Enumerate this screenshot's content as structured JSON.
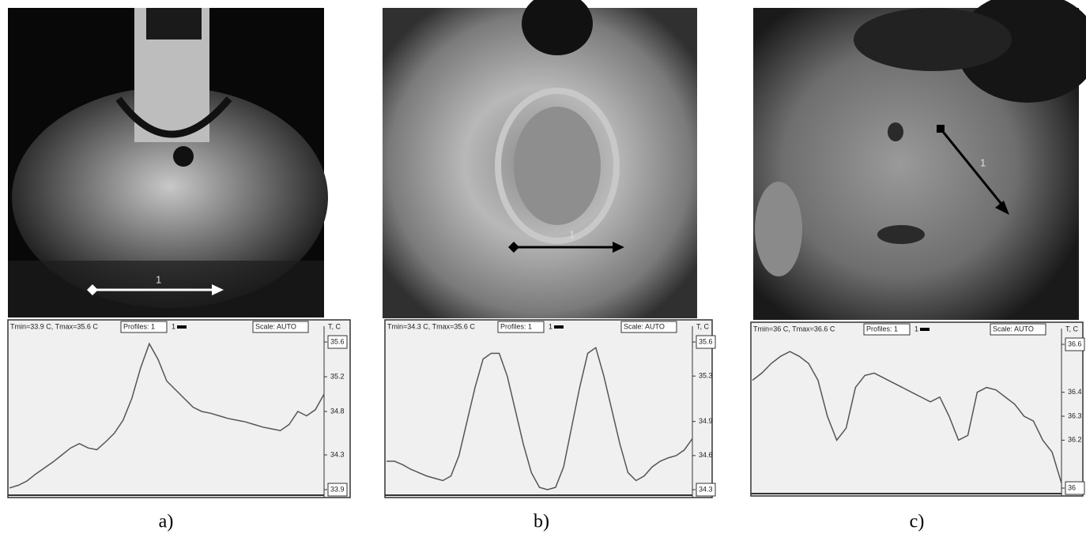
{
  "chart_data": [
    {
      "type": "line",
      "caption": "a)",
      "stats": "Tmin=33.9 C, Tmax=35.6 C",
      "profiles_button": "Profiles: 1",
      "scale_button": "Scale: AUTO",
      "y_label": "T, C",
      "ylim": [
        33.9,
        35.6
      ],
      "yticks": [
        33.9,
        34.3,
        34.8,
        35.2,
        35.6
      ],
      "series": [
        {
          "name": "1",
          "color": "#555555",
          "values": [
            33.92,
            33.95,
            34.0,
            34.08,
            34.15,
            34.22,
            34.3,
            34.38,
            34.43,
            34.38,
            34.36,
            34.45,
            34.55,
            34.7,
            34.95,
            35.3,
            35.58,
            35.4,
            35.15,
            35.05,
            34.95,
            34.85,
            34.8,
            34.78,
            34.75,
            34.72,
            34.7,
            34.68,
            34.65,
            34.62,
            34.6,
            34.58,
            34.65,
            34.8,
            34.75,
            34.82,
            35.0
          ]
        }
      ]
    },
    {
      "type": "line",
      "caption": "b)",
      "stats": "Tmin=34.3 C, Tmax=35.6 C",
      "profiles_button": "Profiles: 1",
      "scale_button": "Scale: AUTO",
      "y_label": "T, C",
      "ylim": [
        34.3,
        35.6
      ],
      "yticks": [
        34.3,
        34.6,
        34.9,
        35.3,
        35.6
      ],
      "series": [
        {
          "name": "1",
          "color": "#555555",
          "values": [
            34.55,
            34.55,
            34.52,
            34.48,
            34.45,
            34.42,
            34.4,
            34.38,
            34.42,
            34.6,
            34.9,
            35.2,
            35.45,
            35.5,
            35.5,
            35.3,
            35.0,
            34.7,
            34.45,
            34.32,
            34.3,
            34.32,
            34.5,
            34.85,
            35.2,
            35.5,
            35.55,
            35.3,
            35.0,
            34.7,
            34.45,
            34.38,
            34.42,
            34.5,
            34.55,
            34.58,
            34.6,
            34.65,
            34.75
          ]
        }
      ]
    },
    {
      "type": "line",
      "caption": "c)",
      "stats": "Tmin=36 C, Tmax=36.6 C",
      "profiles_button": "Profiles: 1",
      "scale_button": "Scale: AUTO",
      "y_label": "T, C",
      "ylim": [
        36,
        36.6
      ],
      "yticks": [
        36,
        36.2,
        36.3,
        36.4,
        36.6
      ],
      "series": [
        {
          "name": "1",
          "color": "#555555",
          "values": [
            36.45,
            36.48,
            36.52,
            36.55,
            36.57,
            36.55,
            36.52,
            36.45,
            36.3,
            36.2,
            36.25,
            36.42,
            36.47,
            36.48,
            36.46,
            36.44,
            36.42,
            36.4,
            36.38,
            36.36,
            36.38,
            36.3,
            36.2,
            36.22,
            36.4,
            36.42,
            36.41,
            36.38,
            36.35,
            36.3,
            36.28,
            36.2,
            36.15,
            36.02
          ]
        }
      ]
    }
  ]
}
